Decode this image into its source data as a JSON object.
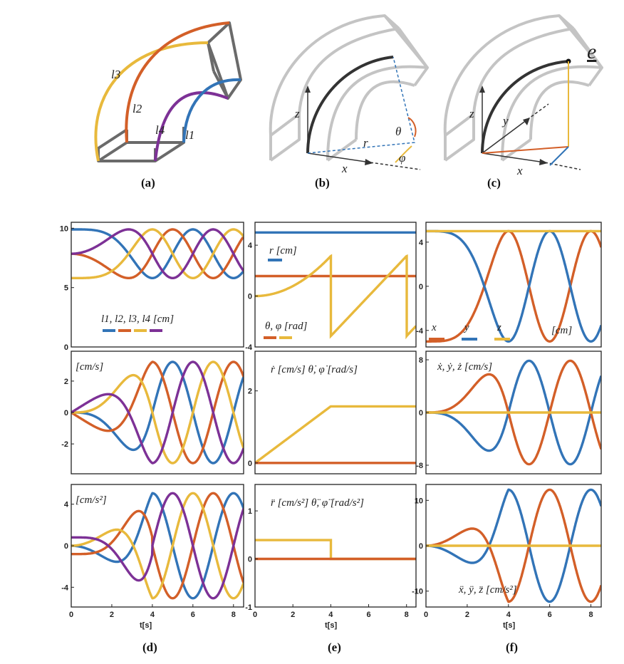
{
  "figure": {
    "panel_labels": [
      "(a)",
      "(b)",
      "(c)",
      "(d)",
      "(e)",
      "(f)"
    ],
    "xlabel": "t[s]",
    "colors": {
      "blue": "#3274b7",
      "orange": "#d35f28",
      "yellow": "#e8b93c",
      "purple": "#7d3196",
      "gray": "#c4c4c4",
      "dark": "#333333"
    },
    "diagram_a": {
      "labels": [
        "l3",
        "l2",
        "l4",
        "l1"
      ]
    },
    "diagram_b": {
      "labels": [
        "z",
        "x",
        "r",
        "θ",
        "φ"
      ]
    },
    "diagram_c": {
      "labels": [
        "z",
        "y",
        "x",
        "e"
      ]
    }
  },
  "chart_data": [
    {
      "id": "d1",
      "type": "line",
      "x_range": [
        0,
        8.5
      ],
      "ylim": [
        0,
        10.5
      ],
      "xticks": [],
      "yticks": [
        0,
        5,
        10
      ],
      "legend": {
        "text": "l1, l2, l3, l4 [cm]",
        "colors": [
          "#3274b7",
          "#d35f28",
          "#e8b93c",
          "#7d3196"
        ]
      },
      "series": [
        {
          "color": "#3274b7",
          "kind": "len",
          "amp": 2.05,
          "phase": 0
        },
        {
          "color": "#d35f28",
          "kind": "len",
          "amp": 2.05,
          "phase": 1.5708
        },
        {
          "color": "#e8b93c",
          "kind": "len",
          "amp": 2.05,
          "phase": 3.1416
        },
        {
          "color": "#7d3196",
          "kind": "len",
          "amp": 2.05,
          "phase": 4.7124
        }
      ]
    },
    {
      "id": "d2",
      "type": "line",
      "x_range": [
        0,
        8.5
      ],
      "ylim": [
        -3.9,
        3.9
      ],
      "xticks": [],
      "yticks": [
        -2,
        0,
        2
      ],
      "legend": {
        "text": "[cm/s]"
      },
      "series": [
        {
          "color": "#3274b7",
          "kind": "vel",
          "amp": 2.05,
          "phase": 0
        },
        {
          "color": "#d35f28",
          "kind": "vel",
          "amp": 2.05,
          "phase": 1.5708
        },
        {
          "color": "#e8b93c",
          "kind": "vel",
          "amp": 2.05,
          "phase": 3.1416
        },
        {
          "color": "#7d3196",
          "kind": "vel",
          "amp": 2.05,
          "phase": 4.7124
        }
      ]
    },
    {
      "id": "d3",
      "type": "line",
      "x_range": [
        0,
        8.5
      ],
      "ylim": [
        -5.9,
        5.9
      ],
      "xticks": [
        0,
        2,
        4,
        6,
        8
      ],
      "yticks": [
        -4,
        0,
        4
      ],
      "legend": {
        "text": "[cm/s²]"
      },
      "series": [
        {
          "color": "#3274b7",
          "kind": "acc",
          "amp": 2.05,
          "phase": 0
        },
        {
          "color": "#d35f28",
          "kind": "acc",
          "amp": 2.05,
          "phase": 1.5708
        },
        {
          "color": "#e8b93c",
          "kind": "acc",
          "amp": 2.05,
          "phase": 3.1416
        },
        {
          "color": "#7d3196",
          "kind": "acc",
          "amp": 2.05,
          "phase": 4.7124
        }
      ]
    },
    {
      "id": "e1",
      "type": "line",
      "x_range": [
        0,
        8.5
      ],
      "ylim": [
        -4,
        5.8
      ],
      "xticks": [],
      "yticks": [
        -4,
        0,
        4
      ],
      "legend": {
        "text1": "r [cm]",
        "text2": "θ, φ [rad]"
      },
      "series": [
        {
          "color": "#3274b7",
          "kind": "const",
          "value": 5
        },
        {
          "color": "#d35f28",
          "kind": "const",
          "value": 1.571
        },
        {
          "color": "#e8b93c",
          "kind": "phi"
        }
      ]
    },
    {
      "id": "e2",
      "type": "line",
      "x_range": [
        0,
        8.5
      ],
      "ylim": [
        -0.3,
        3.1
      ],
      "xticks": [],
      "yticks": [
        0,
        2
      ],
      "legend": {
        "text": "ṙ [cm/s]  θ̇, φ̇ [rad/s]"
      },
      "series": [
        {
          "color": "#e8b93c",
          "kind": "rampsat",
          "slope": 0.3927,
          "tsat": 4
        },
        {
          "color": "#d35f28",
          "kind": "const",
          "value": 0
        }
      ]
    },
    {
      "id": "e3",
      "type": "line",
      "x_range": [
        0,
        8.5
      ],
      "ylim": [
        -1,
        1.55
      ],
      "xticks": [
        0,
        2,
        4,
        6,
        8
      ],
      "yticks": [
        -1,
        0,
        1
      ],
      "legend": {
        "text": "r̈ [cm/s²]  θ̈, φ̈ [rad/s²]"
      },
      "series": [
        {
          "color": "#e8b93c",
          "kind": "step",
          "value": 0.3927,
          "tsat": 4
        },
        {
          "color": "#d35f28",
          "kind": "const",
          "value": 0
        }
      ]
    },
    {
      "id": "f1",
      "type": "line",
      "x_range": [
        0,
        8.5
      ],
      "ylim": [
        -5.5,
        5.8
      ],
      "xticks": [],
      "yticks": [
        -4,
        0,
        4
      ],
      "legend": {
        "names": [
          "x",
          "y",
          "z"
        ],
        "unit": "[cm]",
        "colors": [
          "#d35f28",
          "#3274b7",
          "#e8b93c"
        ]
      },
      "series": [
        {
          "color": "#d35f28",
          "kind": "pos",
          "comp": "x",
          "radius": 5
        },
        {
          "color": "#3274b7",
          "kind": "pos",
          "comp": "y",
          "radius": 5
        },
        {
          "color": "#e8b93c",
          "kind": "const",
          "value": 5
        }
      ]
    },
    {
      "id": "f2",
      "type": "line",
      "x_range": [
        0,
        8.5
      ],
      "ylim": [
        -9.3,
        9.3
      ],
      "xticks": [],
      "yticks": [
        -8,
        0,
        8
      ],
      "legend": {
        "text": "ẋ, ẏ, ż [cm/s]"
      },
      "series": [
        {
          "color": "#3274b7",
          "kind": "vel2",
          "comp": "y",
          "radius": 5
        },
        {
          "color": "#d35f28",
          "kind": "vel2",
          "comp": "x",
          "radius": 5
        },
        {
          "color": "#e8b93c",
          "kind": "const",
          "value": 0
        }
      ]
    },
    {
      "id": "f3",
      "type": "line",
      "x_range": [
        0,
        8.5
      ],
      "ylim": [
        -13.5,
        13.5
      ],
      "xticks": [
        0,
        2,
        4,
        6,
        8
      ],
      "yticks": [
        -10,
        0,
        10
      ],
      "legend": {
        "text": "ẍ, ÿ, z̈ [cm/s²]"
      },
      "series": [
        {
          "color": "#3274b7",
          "kind": "acc2",
          "comp": "y",
          "radius": 5
        },
        {
          "color": "#d35f28",
          "kind": "acc2",
          "comp": "x",
          "radius": 5
        },
        {
          "color": "#e8b93c",
          "kind": "const",
          "value": 0
        }
      ]
    }
  ]
}
